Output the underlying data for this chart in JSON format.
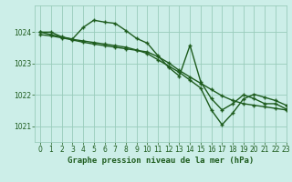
{
  "title": "Graphe pression niveau de la mer (hPa)",
  "background_color": "#cceee8",
  "plot_bg_color": "#cceee8",
  "grid_color": "#99ccbb",
  "line_color": "#1e5c1e",
  "marker_color": "#1e5c1e",
  "xlim": [
    -0.5,
    23
  ],
  "ylim": [
    1020.5,
    1024.85
  ],
  "yticks": [
    1021,
    1022,
    1023,
    1024
  ],
  "xticks": [
    0,
    1,
    2,
    3,
    4,
    5,
    6,
    7,
    8,
    9,
    10,
    11,
    12,
    13,
    14,
    15,
    16,
    17,
    18,
    19,
    20,
    21,
    22,
    23
  ],
  "series": [
    [
      1024.0,
      1024.0,
      1023.85,
      1023.78,
      1024.15,
      1024.38,
      1024.32,
      1024.28,
      1024.05,
      1023.8,
      1023.65,
      1023.25,
      1022.88,
      1022.6,
      1023.58,
      1022.42,
      1021.88,
      1021.52,
      1021.72,
      1022.0,
      1021.88,
      1021.72,
      1021.72,
      1021.55
    ],
    [
      1023.92,
      1023.88,
      1023.82,
      1023.75,
      1023.68,
      1023.62,
      1023.57,
      1023.52,
      1023.47,
      1023.42,
      1023.37,
      1023.22,
      1023.02,
      1022.78,
      1022.57,
      1022.37,
      1022.17,
      1021.97,
      1021.82,
      1021.72,
      1021.67,
      1021.62,
      1021.57,
      1021.52
    ],
    [
      1024.0,
      1023.92,
      1023.84,
      1023.77,
      1023.72,
      1023.67,
      1023.62,
      1023.57,
      1023.52,
      1023.43,
      1023.32,
      1023.12,
      1022.92,
      1022.72,
      1022.47,
      1022.22,
      1021.52,
      1021.05,
      1021.42,
      1021.87,
      1022.02,
      1021.92,
      1021.82,
      1021.67
    ]
  ],
  "title_fontsize": 6.5,
  "tick_fontsize": 5.5,
  "linewidth": 1.0,
  "markersize": 3.0
}
